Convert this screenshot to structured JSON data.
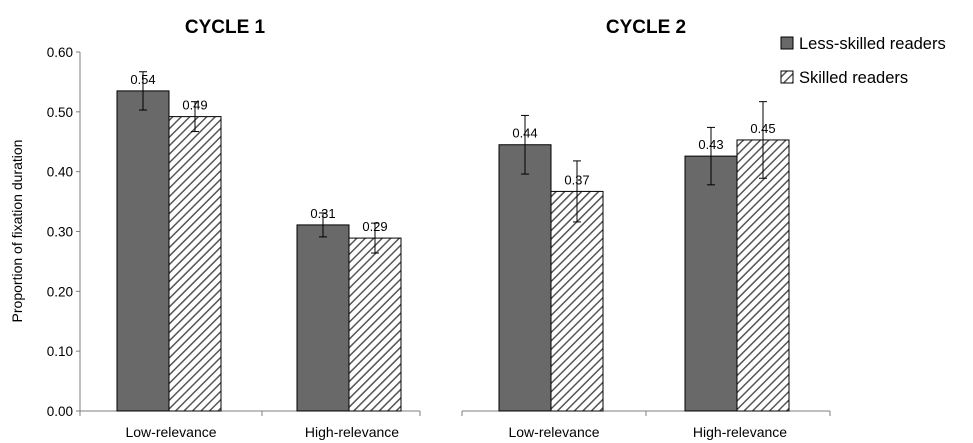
{
  "chart_data": {
    "type": "bar",
    "ylabel": "Proportion of fixation duration",
    "ylim": [
      0,
      0.6
    ],
    "yticks": [
      "0.00",
      "0.10",
      "0.20",
      "0.30",
      "0.40",
      "0.50",
      "0.60"
    ],
    "legend_position": "top-right",
    "colors": {
      "less_skilled": "#696969",
      "skilled_hatch": "#555555"
    },
    "series_names": [
      "Less-skilled readers",
      "Skilled readers"
    ],
    "panels": [
      {
        "title": "CYCLE 1",
        "categories": [
          "Low-relevance",
          "High-relevance"
        ],
        "series": [
          {
            "name": "Less-skilled readers",
            "values": [
              0.535,
              0.311
            ],
            "labels": [
              "0.54",
              "0.31"
            ],
            "err": [
              0.032,
              0.02
            ]
          },
          {
            "name": "Skilled readers",
            "values": [
              0.492,
              0.289
            ],
            "labels": [
              "0.49",
              "0.29"
            ],
            "err": [
              0.025,
              0.025
            ]
          }
        ]
      },
      {
        "title": "CYCLE 2",
        "categories": [
          "Low-relevance",
          "High-relevance"
        ],
        "series": [
          {
            "name": "Less-skilled readers",
            "values": [
              0.445,
              0.426
            ],
            "labels": [
              "0.44",
              "0.43"
            ],
            "err": [
              0.049,
              0.048
            ]
          },
          {
            "name": "Skilled readers",
            "values": [
              0.367,
              0.453
            ],
            "labels": [
              "0.37",
              "0.45"
            ],
            "err": [
              0.051,
              0.064
            ]
          }
        ]
      }
    ]
  }
}
